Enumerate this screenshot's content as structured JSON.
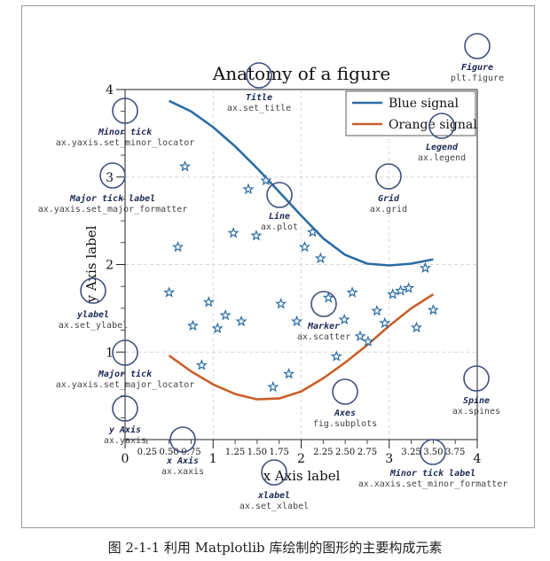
{
  "caption": "图 2-1-1   利用 Matplotlib 库绘制的图形的主要构成元素",
  "chart_data": {
    "type": "line",
    "title": "Anatomy of a figure",
    "xlabel": "x Axis label",
    "ylabel": "y Axis label",
    "xlim": [
      0,
      4
    ],
    "ylim": [
      0,
      4
    ],
    "x_major_ticks": [
      "0",
      "1",
      "2",
      "3",
      "4"
    ],
    "x_minor_ticks": [
      "0.25",
      "0.50",
      "0.75",
      "1.25",
      "1.50",
      "1.75",
      "2.25",
      "2.50",
      "2.75",
      "3.25",
      "3.50",
      "3.75"
    ],
    "y_major_ticks": [
      "1",
      "2",
      "3",
      "4"
    ],
    "grid": true,
    "legend_position": "top-right",
    "series": [
      {
        "name": "Blue signal",
        "kind": "line",
        "color": "#2b6ca3",
        "x": [
          0.5,
          0.75,
          1.0,
          1.25,
          1.5,
          1.75,
          2.0,
          2.25,
          2.5,
          2.75,
          3.0,
          3.25,
          3.5
        ],
        "y": [
          3.87,
          3.75,
          3.57,
          3.35,
          3.1,
          2.83,
          2.56,
          2.3,
          2.11,
          2.01,
          1.99,
          2.01,
          2.06
        ]
      },
      {
        "name": "Orange signal",
        "kind": "line",
        "color": "#c95f2a",
        "x": [
          0.5,
          0.75,
          1.0,
          1.25,
          1.5,
          1.75,
          2.0,
          2.25,
          2.5,
          2.75,
          3.0,
          3.25,
          3.5
        ],
        "y": [
          0.96,
          0.78,
          0.63,
          0.52,
          0.46,
          0.47,
          0.55,
          0.7,
          0.88,
          1.08,
          1.3,
          1.5,
          1.66
        ]
      },
      {
        "name": "",
        "kind": "scatter",
        "color": "#2b6ca3",
        "marker": "star",
        "x": [
          0.5,
          0.6,
          0.68,
          0.77,
          0.87,
          0.95,
          1.05,
          1.14,
          1.23,
          1.32,
          1.4,
          1.49,
          1.6,
          1.68,
          1.77,
          1.86,
          1.95,
          2.04,
          2.13,
          2.22,
          2.31,
          2.4,
          2.49,
          2.58,
          2.67,
          2.76,
          2.86,
          2.95,
          3.04,
          3.13,
          3.22,
          3.31,
          3.41,
          3.5
        ],
        "y": [
          1.68,
          2.2,
          3.12,
          1.3,
          0.85,
          1.57,
          1.27,
          1.42,
          2.36,
          1.35,
          2.86,
          2.33,
          2.96,
          0.6,
          1.55,
          0.75,
          1.35,
          2.2,
          2.37,
          2.07,
          1.62,
          0.95,
          1.37,
          1.68,
          1.18,
          1.12,
          1.47,
          1.33,
          1.66,
          1.7,
          1.73,
          1.28,
          1.96,
          1.48
        ]
      }
    ]
  },
  "annotations": [
    {
      "name": "Title",
      "code": "ax.set_title"
    },
    {
      "name": "Figure",
      "code": "plt.figure"
    },
    {
      "name": "Minor tick",
      "code": "ax.yaxis.set_minor_locator"
    },
    {
      "name": "Legend",
      "code": "ax.legend"
    },
    {
      "name": "Major tick label",
      "code": "ax.yaxis.set_major_formatter"
    },
    {
      "name": "Grid",
      "code": "ax.grid"
    },
    {
      "name": "Line",
      "code": "ax.plot"
    },
    {
      "name": "ylabel",
      "code": "ax.set_ylabel"
    },
    {
      "name": "Marker",
      "code": "ax.scatter"
    },
    {
      "name": "Major tick",
      "code": "ax.yaxis.set_major_locator"
    },
    {
      "name": "Spine",
      "code": "ax.spines"
    },
    {
      "name": "Axes",
      "code": "fig.subplots"
    },
    {
      "name": "y Axis",
      "code": "ax.yaxis"
    },
    {
      "name": "x Axis",
      "code": "ax.xaxis"
    },
    {
      "name": "Minor tick label",
      "code": "ax.xaxis.set_minor_formatter"
    },
    {
      "name": "xlabel",
      "code": "ax.set_xlabel"
    }
  ]
}
